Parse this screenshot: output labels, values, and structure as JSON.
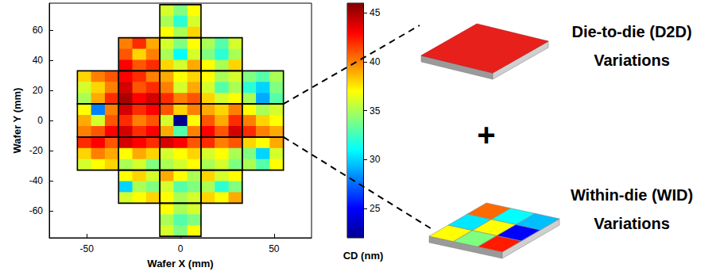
{
  "chart_data": {
    "type": "heatmap",
    "x_label": "Wafer X (mm)",
    "y_label": "Wafer Y (mm)",
    "xlim": [
      -70,
      70
    ],
    "ylim": [
      -78,
      78
    ],
    "xticks": [
      -50,
      0,
      50
    ],
    "yticks": [
      -60,
      -40,
      -20,
      0,
      20,
      40,
      60
    ],
    "x_edges": [
      -55,
      -47.67,
      -40.33,
      -33,
      -25.67,
      -18.33,
      -11,
      -3.67,
      3.67,
      11,
      18.33,
      25.67,
      33,
      40.33,
      47.67,
      55
    ],
    "y_edges": [
      77,
      69.67,
      62.33,
      55,
      47.67,
      40.33,
      33,
      25.67,
      18.33,
      11,
      3.67,
      -3.67,
      -11,
      -18.33,
      -25.67,
      -33,
      -40.33,
      -47.67,
      -55,
      -62.33,
      -69.67,
      -77
    ],
    "values": [
      [
        null,
        null,
        null,
        null,
        null,
        null,
        36,
        34,
        37,
        null,
        null,
        null,
        null,
        null,
        null
      ],
      [
        null,
        null,
        null,
        null,
        null,
        null,
        35,
        32,
        36,
        null,
        null,
        null,
        null,
        null,
        null
      ],
      [
        null,
        null,
        null,
        null,
        null,
        null,
        37,
        35,
        38,
        null,
        null,
        null,
        null,
        null,
        null
      ],
      [
        null,
        null,
        null,
        40,
        42,
        39,
        36,
        34,
        37,
        35,
        33,
        36,
        null,
        null,
        null
      ],
      [
        null,
        null,
        null,
        41,
        38,
        40,
        35,
        31,
        36,
        34,
        32,
        35,
        null,
        null,
        null
      ],
      [
        null,
        null,
        null,
        43,
        41,
        42,
        38,
        36,
        39,
        37,
        35,
        38,
        null,
        null,
        null
      ],
      [
        38,
        40,
        41,
        43,
        42,
        40,
        39,
        37,
        38,
        37,
        35,
        36,
        34,
        33,
        35
      ],
      [
        36,
        38,
        40,
        44,
        41,
        42,
        40,
        36,
        39,
        36,
        33,
        35,
        32,
        30,
        34
      ],
      [
        35,
        39,
        42,
        45,
        43,
        44,
        42,
        40,
        41,
        38,
        36,
        37,
        35,
        29,
        33
      ],
      [
        37,
        28,
        40,
        44,
        42,
        43,
        41,
        38,
        40,
        39,
        38,
        40,
        37,
        35,
        36
      ],
      [
        39,
        36,
        41,
        42,
        40,
        41,
        36,
        22,
        37,
        41,
        39,
        42,
        40,
        38,
        37
      ],
      [
        40,
        41,
        43,
        44,
        42,
        43,
        39,
        33,
        40,
        43,
        41,
        44,
        42,
        40,
        39
      ],
      [
        42,
        43,
        41,
        44,
        43,
        42,
        44,
        43,
        41,
        42,
        40,
        41,
        38,
        37,
        39
      ],
      [
        38,
        40,
        39,
        37,
        39,
        38,
        36,
        37,
        38,
        36,
        37,
        35,
        34,
        30,
        36
      ],
      [
        36,
        37,
        38,
        35,
        36,
        34,
        35,
        36,
        37,
        35,
        36,
        34,
        35,
        33,
        37
      ],
      [
        null,
        null,
        null,
        37,
        38,
        36,
        39,
        37,
        35,
        38,
        36,
        37,
        null,
        null,
        null
      ],
      [
        null,
        null,
        null,
        30,
        35,
        34,
        36,
        33,
        34,
        35,
        32,
        34,
        null,
        null,
        null
      ],
      [
        null,
        null,
        null,
        36,
        37,
        38,
        37,
        35,
        36,
        38,
        37,
        39,
        null,
        null,
        null
      ],
      [
        null,
        null,
        null,
        null,
        null,
        null,
        37,
        35,
        36,
        null,
        null,
        null,
        null,
        null,
        null
      ],
      [
        null,
        null,
        null,
        null,
        null,
        null,
        35,
        33,
        34,
        null,
        null,
        null,
        null,
        null,
        null
      ],
      [
        null,
        null,
        null,
        null,
        null,
        null,
        36,
        34,
        37,
        null,
        null,
        null,
        null,
        null,
        null
      ]
    ],
    "dies": [
      [
        -11,
        55,
        11,
        77
      ],
      [
        -33,
        33,
        -11,
        55
      ],
      [
        -11,
        33,
        11,
        55
      ],
      [
        11,
        33,
        33,
        55
      ],
      [
        -55,
        11,
        -33,
        33
      ],
      [
        -33,
        11,
        -11,
        33
      ],
      [
        -11,
        11,
        11,
        33
      ],
      [
        11,
        11,
        33,
        33
      ],
      [
        33,
        11,
        55,
        33
      ],
      [
        -55,
        -11,
        -33,
        11
      ],
      [
        -33,
        -11,
        -11,
        11
      ],
      [
        -11,
        -11,
        11,
        11
      ],
      [
        11,
        -11,
        33,
        11
      ],
      [
        33,
        -11,
        55,
        11
      ],
      [
        -55,
        -33,
        -33,
        -11
      ],
      [
        -33,
        -33,
        -11,
        -11
      ],
      [
        -11,
        -33,
        11,
        -11
      ],
      [
        11,
        -33,
        33,
        -11
      ],
      [
        33,
        -33,
        55,
        -11
      ],
      [
        -33,
        -55,
        -11,
        -33
      ],
      [
        -11,
        -55,
        11,
        -33
      ],
      [
        11,
        -55,
        33,
        -33
      ],
      [
        -11,
        -77,
        11,
        -55
      ]
    ],
    "colorbar": {
      "label": "CD (nm)",
      "range": [
        22,
        46
      ],
      "ticks": [
        25,
        30,
        35,
        40,
        45
      ]
    }
  },
  "diagram": {
    "d2d": {
      "label": [
        "Die-to-die (D2D)",
        "Variations"
      ],
      "color": "#e8201c"
    },
    "plus": "+",
    "wid": {
      "label": [
        "Within-die (WID)",
        "Variations"
      ],
      "colors": [
        "#ffff00",
        "#00e8ff",
        "#ff6a00",
        "#7fff7f",
        "#ffff00",
        "#00ffff",
        "#ff1a00",
        "#0000ff",
        "#00bfff"
      ]
    }
  }
}
